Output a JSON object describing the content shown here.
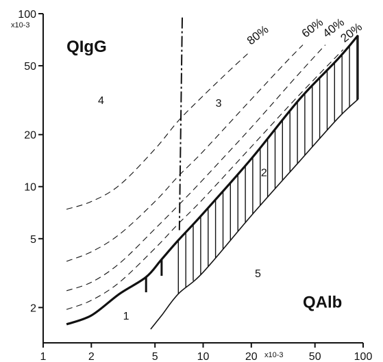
{
  "chart_data": {
    "type": "line",
    "title": "",
    "xlabel": "QAlb",
    "ylabel": "QIgG",
    "x_unit_label": "x10-3",
    "y_unit_label": "x10-3",
    "xscale": "log",
    "yscale": "log",
    "xlim": [
      1,
      100
    ],
    "ylim": [
      1.25,
      100
    ],
    "x_ticks": [
      1,
      2,
      5,
      10,
      20,
      50,
      100
    ],
    "x_tick_labels": [
      "1",
      "2",
      "5",
      "10",
      "20",
      "50",
      "100"
    ],
    "y_ticks": [
      2,
      5,
      10,
      20,
      50,
      100
    ],
    "y_tick_labels": [
      "2",
      "5",
      "10",
      "20",
      "50",
      "100"
    ],
    "region_labels": [
      "1",
      "2",
      "3",
      "4",
      "5"
    ],
    "percent_labels": [
      "20%",
      "40%",
      "60%",
      "80%"
    ],
    "series": [
      {
        "name": "upper-limit",
        "style": "solid-thick",
        "x": [
          1.4,
          2,
          3,
          4.4,
          5.5,
          7,
          10,
          20,
          40,
          70,
          93
        ],
        "y": [
          1.6,
          1.8,
          2.4,
          3.0,
          3.8,
          4.9,
          7.0,
          14.5,
          32,
          55,
          75
        ]
      },
      {
        "name": "lower-limit",
        "style": "solid",
        "x": [
          4.7,
          5.5,
          7,
          10,
          20,
          40,
          70,
          93
        ],
        "y": [
          1.5,
          1.8,
          2.4,
          3.2,
          6.8,
          14,
          25,
          32
        ]
      },
      {
        "name": "20%",
        "style": "dashed",
        "x": [
          1.4,
          2,
          3,
          5,
          7,
          10,
          20,
          40,
          75
        ],
        "y": [
          1.95,
          2.2,
          2.8,
          4.4,
          6.1,
          8.5,
          17,
          34,
          62
        ]
      },
      {
        "name": "40%",
        "style": "dashed",
        "x": [
          1.4,
          2,
          3,
          5,
          7,
          10,
          20,
          38,
          58
        ],
        "y": [
          2.5,
          2.8,
          3.6,
          5.7,
          7.8,
          11,
          22,
          43,
          66
        ]
      },
      {
        "name": "60%",
        "style": "dashed",
        "x": [
          1.4,
          2,
          3,
          5,
          7,
          10,
          20,
          32,
          42
        ],
        "y": [
          3.7,
          4.2,
          5.3,
          8.2,
          11.5,
          16,
          32,
          51,
          66
        ]
      },
      {
        "name": "80%",
        "style": "dashed",
        "x": [
          1.4,
          2,
          3,
          5,
          7,
          10,
          15,
          19.5
        ],
        "y": [
          7.4,
          8.2,
          10.2,
          16.5,
          24,
          33.5,
          48,
          60
        ]
      },
      {
        "name": "vertical-divider",
        "style": "dash-dot",
        "x": [
          7.4,
          7.1
        ],
        "y": [
          95,
          5.6
        ]
      }
    ],
    "hatch": {
      "between": [
        "upper-limit",
        "lower-limit"
      ],
      "x_start": 7.0,
      "x_end": 93,
      "step_log": 0.0465
    },
    "steps": [
      {
        "x": 4.4,
        "y_low": 2.45,
        "y_high": 3.0
      },
      {
        "x": 5.5,
        "y_low": 3.05,
        "y_high": 3.8
      }
    ],
    "annotations": [
      {
        "text": "1",
        "x": 3.3,
        "y": 1.7
      },
      {
        "text": "2",
        "x": 24,
        "y": 11.5
      },
      {
        "text": "3",
        "x": 12.5,
        "y": 29
      },
      {
        "text": "4",
        "x": 2.3,
        "y": 30
      },
      {
        "text": "5",
        "x": 22,
        "y": 3.0
      },
      {
        "text": "QIgG",
        "x": 1.4,
        "y": 60
      },
      {
        "text": "QAlb",
        "x": 42,
        "y": 2.0
      }
    ]
  }
}
